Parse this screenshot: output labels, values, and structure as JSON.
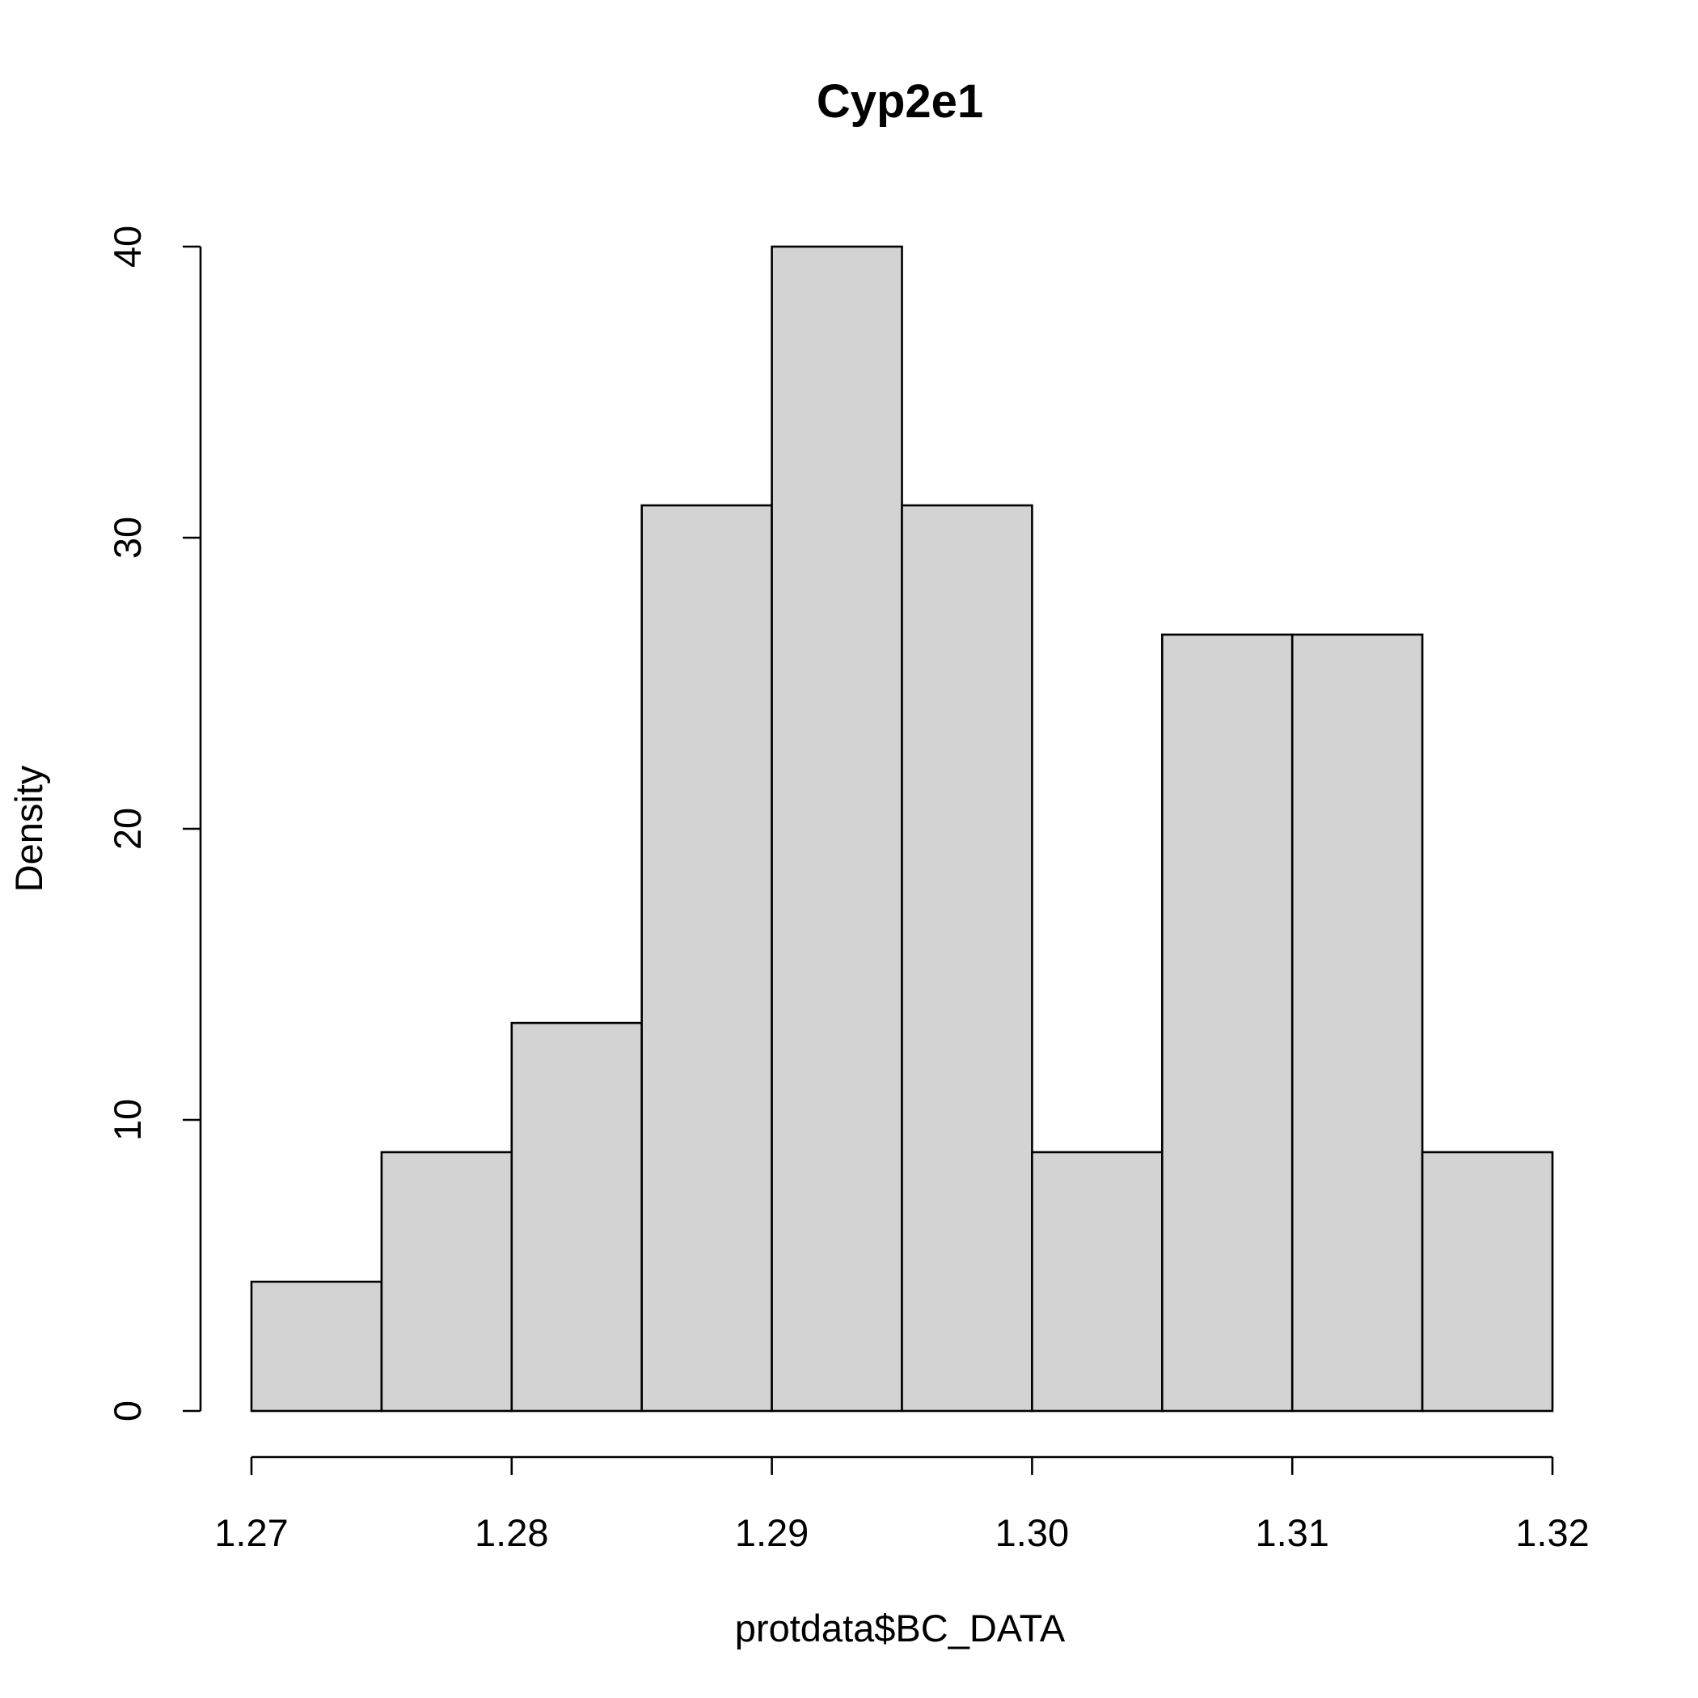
{
  "chart_data": {
    "type": "bar",
    "title": "Cyp2e1",
    "xlabel": "protdata$BC_DATA",
    "ylabel": "Density",
    "bins": [
      {
        "start": 1.27,
        "end": 1.275,
        "density": 4.44
      },
      {
        "start": 1.275,
        "end": 1.28,
        "density": 8.89
      },
      {
        "start": 1.28,
        "end": 1.285,
        "density": 13.33
      },
      {
        "start": 1.285,
        "end": 1.29,
        "density": 31.11
      },
      {
        "start": 1.29,
        "end": 1.295,
        "density": 40.0
      },
      {
        "start": 1.295,
        "end": 1.3,
        "density": 31.11
      },
      {
        "start": 1.3,
        "end": 1.305,
        "density": 8.89
      },
      {
        "start": 1.305,
        "end": 1.31,
        "density": 26.67
      },
      {
        "start": 1.31,
        "end": 1.315,
        "density": 26.67
      },
      {
        "start": 1.315,
        "end": 1.32,
        "density": 8.89
      }
    ],
    "xlim": [
      1.27,
      1.32
    ],
    "ylim": [
      0,
      40
    ],
    "x_ticks": [
      "1.27",
      "1.28",
      "1.29",
      "1.30",
      "1.31",
      "1.32"
    ],
    "y_ticks": [
      "0",
      "10",
      "20",
      "30",
      "40"
    ],
    "bar_fill": "#d3d3d3",
    "bar_stroke": "#000000",
    "grid": false,
    "legend": "none"
  }
}
